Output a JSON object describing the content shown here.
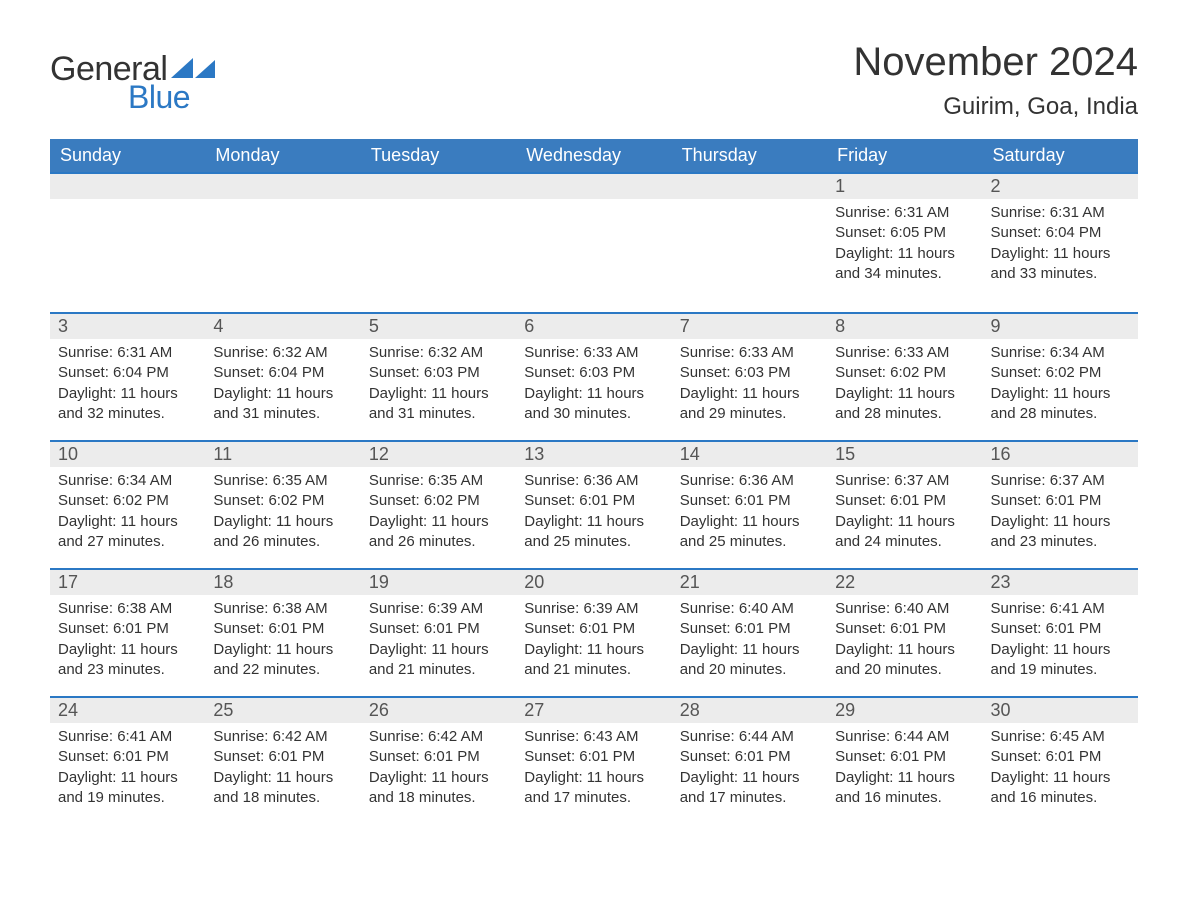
{
  "logo": {
    "text1": "General",
    "text2": "Blue"
  },
  "title": "November 2024",
  "location": "Guirim, Goa, India",
  "colors": {
    "header_bg": "#3a7cbf",
    "header_text": "#ffffff",
    "accent_line": "#2b78c4",
    "daynum_bg": "#ececec",
    "body_text": "#333333",
    "logo_blue": "#2b78c4",
    "background": "#ffffff"
  },
  "typography": {
    "month_title_fontsize": 40,
    "location_fontsize": 24,
    "weekday_fontsize": 18,
    "daynum_fontsize": 18,
    "content_fontsize": 15,
    "logo_fontsize": 34
  },
  "type": "calendar-table",
  "weekdays": [
    "Sunday",
    "Monday",
    "Tuesday",
    "Wednesday",
    "Thursday",
    "Friday",
    "Saturday"
  ],
  "weeks": [
    [
      null,
      null,
      null,
      null,
      null,
      {
        "day": "1",
        "sunrise": "Sunrise: 6:31 AM",
        "sunset": "Sunset: 6:05 PM",
        "daylight": "Daylight: 11 hours and 34 minutes."
      },
      {
        "day": "2",
        "sunrise": "Sunrise: 6:31 AM",
        "sunset": "Sunset: 6:04 PM",
        "daylight": "Daylight: 11 hours and 33 minutes."
      }
    ],
    [
      {
        "day": "3",
        "sunrise": "Sunrise: 6:31 AM",
        "sunset": "Sunset: 6:04 PM",
        "daylight": "Daylight: 11 hours and 32 minutes."
      },
      {
        "day": "4",
        "sunrise": "Sunrise: 6:32 AM",
        "sunset": "Sunset: 6:04 PM",
        "daylight": "Daylight: 11 hours and 31 minutes."
      },
      {
        "day": "5",
        "sunrise": "Sunrise: 6:32 AM",
        "sunset": "Sunset: 6:03 PM",
        "daylight": "Daylight: 11 hours and 31 minutes."
      },
      {
        "day": "6",
        "sunrise": "Sunrise: 6:33 AM",
        "sunset": "Sunset: 6:03 PM",
        "daylight": "Daylight: 11 hours and 30 minutes."
      },
      {
        "day": "7",
        "sunrise": "Sunrise: 6:33 AM",
        "sunset": "Sunset: 6:03 PM",
        "daylight": "Daylight: 11 hours and 29 minutes."
      },
      {
        "day": "8",
        "sunrise": "Sunrise: 6:33 AM",
        "sunset": "Sunset: 6:02 PM",
        "daylight": "Daylight: 11 hours and 28 minutes."
      },
      {
        "day": "9",
        "sunrise": "Sunrise: 6:34 AM",
        "sunset": "Sunset: 6:02 PM",
        "daylight": "Daylight: 11 hours and 28 minutes."
      }
    ],
    [
      {
        "day": "10",
        "sunrise": "Sunrise: 6:34 AM",
        "sunset": "Sunset: 6:02 PM",
        "daylight": "Daylight: 11 hours and 27 minutes."
      },
      {
        "day": "11",
        "sunrise": "Sunrise: 6:35 AM",
        "sunset": "Sunset: 6:02 PM",
        "daylight": "Daylight: 11 hours and 26 minutes."
      },
      {
        "day": "12",
        "sunrise": "Sunrise: 6:35 AM",
        "sunset": "Sunset: 6:02 PM",
        "daylight": "Daylight: 11 hours and 26 minutes."
      },
      {
        "day": "13",
        "sunrise": "Sunrise: 6:36 AM",
        "sunset": "Sunset: 6:01 PM",
        "daylight": "Daylight: 11 hours and 25 minutes."
      },
      {
        "day": "14",
        "sunrise": "Sunrise: 6:36 AM",
        "sunset": "Sunset: 6:01 PM",
        "daylight": "Daylight: 11 hours and 25 minutes."
      },
      {
        "day": "15",
        "sunrise": "Sunrise: 6:37 AM",
        "sunset": "Sunset: 6:01 PM",
        "daylight": "Daylight: 11 hours and 24 minutes."
      },
      {
        "day": "16",
        "sunrise": "Sunrise: 6:37 AM",
        "sunset": "Sunset: 6:01 PM",
        "daylight": "Daylight: 11 hours and 23 minutes."
      }
    ],
    [
      {
        "day": "17",
        "sunrise": "Sunrise: 6:38 AM",
        "sunset": "Sunset: 6:01 PM",
        "daylight": "Daylight: 11 hours and 23 minutes."
      },
      {
        "day": "18",
        "sunrise": "Sunrise: 6:38 AM",
        "sunset": "Sunset: 6:01 PM",
        "daylight": "Daylight: 11 hours and 22 minutes."
      },
      {
        "day": "19",
        "sunrise": "Sunrise: 6:39 AM",
        "sunset": "Sunset: 6:01 PM",
        "daylight": "Daylight: 11 hours and 21 minutes."
      },
      {
        "day": "20",
        "sunrise": "Sunrise: 6:39 AM",
        "sunset": "Sunset: 6:01 PM",
        "daylight": "Daylight: 11 hours and 21 minutes."
      },
      {
        "day": "21",
        "sunrise": "Sunrise: 6:40 AM",
        "sunset": "Sunset: 6:01 PM",
        "daylight": "Daylight: 11 hours and 20 minutes."
      },
      {
        "day": "22",
        "sunrise": "Sunrise: 6:40 AM",
        "sunset": "Sunset: 6:01 PM",
        "daylight": "Daylight: 11 hours and 20 minutes."
      },
      {
        "day": "23",
        "sunrise": "Sunrise: 6:41 AM",
        "sunset": "Sunset: 6:01 PM",
        "daylight": "Daylight: 11 hours and 19 minutes."
      }
    ],
    [
      {
        "day": "24",
        "sunrise": "Sunrise: 6:41 AM",
        "sunset": "Sunset: 6:01 PM",
        "daylight": "Daylight: 11 hours and 19 minutes."
      },
      {
        "day": "25",
        "sunrise": "Sunrise: 6:42 AM",
        "sunset": "Sunset: 6:01 PM",
        "daylight": "Daylight: 11 hours and 18 minutes."
      },
      {
        "day": "26",
        "sunrise": "Sunrise: 6:42 AM",
        "sunset": "Sunset: 6:01 PM",
        "daylight": "Daylight: 11 hours and 18 minutes."
      },
      {
        "day": "27",
        "sunrise": "Sunrise: 6:43 AM",
        "sunset": "Sunset: 6:01 PM",
        "daylight": "Daylight: 11 hours and 17 minutes."
      },
      {
        "day": "28",
        "sunrise": "Sunrise: 6:44 AM",
        "sunset": "Sunset: 6:01 PM",
        "daylight": "Daylight: 11 hours and 17 minutes."
      },
      {
        "day": "29",
        "sunrise": "Sunrise: 6:44 AM",
        "sunset": "Sunset: 6:01 PM",
        "daylight": "Daylight: 11 hours and 16 minutes."
      },
      {
        "day": "30",
        "sunrise": "Sunrise: 6:45 AM",
        "sunset": "Sunset: 6:01 PM",
        "daylight": "Daylight: 11 hours and 16 minutes."
      }
    ]
  ]
}
